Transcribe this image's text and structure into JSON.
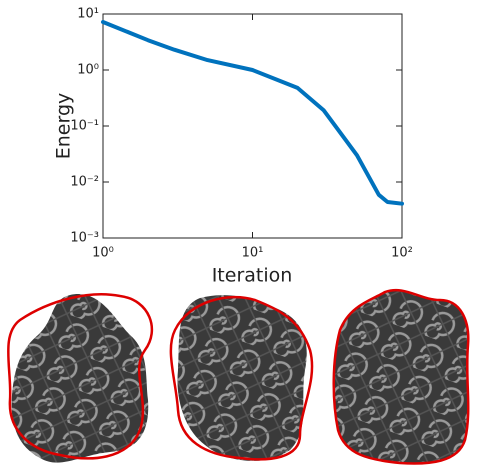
{
  "chart_data": {
    "type": "line",
    "x_label": "Iteration",
    "y_label": "Energy",
    "x": [
      1,
      2,
      3,
      5,
      10,
      20,
      30,
      50,
      70,
      80,
      100
    ],
    "series": [
      {
        "color": "#0072bd",
        "values": [
          7.2,
          3.4,
          2.3,
          1.5,
          1.0,
          0.48,
          0.19,
          0.03,
          0.0059,
          0.0044,
          0.0041
        ]
      }
    ],
    "xscale": "log",
    "yscale": "log",
    "xlim": [
      1,
      100
    ],
    "ylim": [
      0.001,
      10
    ],
    "xticks": [
      {
        "value": 1,
        "label": "10⁰"
      },
      {
        "value": 10,
        "label": "10¹"
      },
      {
        "value": 100,
        "label": "10²"
      }
    ],
    "yticks": [
      {
        "value": 0.001,
        "label": "10⁻³"
      },
      {
        "value": 0.01,
        "label": "10⁻²"
      },
      {
        "value": 0.1,
        "label": "10⁻¹"
      },
      {
        "value": 1,
        "label": "10⁰"
      },
      {
        "value": 10,
        "label": "10¹"
      }
    ]
  }
}
